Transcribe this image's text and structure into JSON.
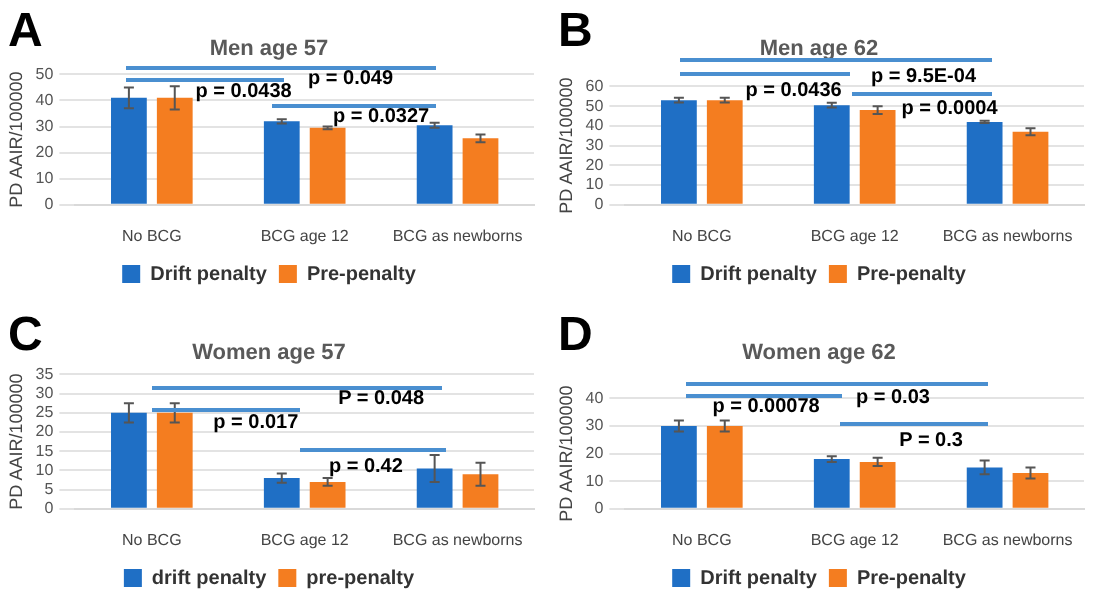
{
  "chart_data": [
    {
      "type": "bar",
      "title": "Men age 57",
      "ylabel": "PD AAIR/100000",
      "categories": [
        "No BCG",
        "BCG age 12",
        "BCG as newborns"
      ],
      "series": [
        {
          "name": "Drift penalty",
          "color": "#1f6fc5",
          "values": [
            41,
            32,
            30.5
          ],
          "errors": [
            4,
            0.8,
            1
          ]
        },
        {
          "name": "Pre-penalty",
          "color": "#f47d20",
          "values": [
            41,
            29.5,
            25.5
          ],
          "errors": [
            4.5,
            0.5,
            1.5
          ]
        }
      ],
      "ylim": [
        0,
        50
      ],
      "yticks": [
        0,
        10,
        20,
        30,
        40,
        50
      ],
      "grid": "y",
      "legend": "bottom",
      "annotations": [
        "A",
        "p = 0.0438",
        "p = 0.049",
        "p = 0.0327"
      ]
    },
    {
      "type": "bar",
      "title": "Men age 62",
      "ylabel": "PD AAIR/100000",
      "categories": [
        "No BCG",
        "BCG age 12",
        "BCG as newborns"
      ],
      "series": [
        {
          "name": "Drift penalty",
          "color": "#1f6fc5",
          "values": [
            53,
            50.5,
            42
          ],
          "errors": [
            1.2,
            1.2,
            0.6
          ]
        },
        {
          "name": "Pre-penalty",
          "color": "#f47d20",
          "values": [
            53,
            48,
            37
          ],
          "errors": [
            1.2,
            2,
            1.8
          ]
        }
      ],
      "ylim": [
        0,
        60
      ],
      "yticks": [
        0,
        10,
        20,
        30,
        40,
        50,
        60
      ],
      "grid": "y",
      "legend": "bottom",
      "annotations": [
        "B",
        "p = 0.0436",
        "p = 9.5E-04",
        "p = 0.0004"
      ]
    },
    {
      "type": "bar",
      "title": "Women age 57",
      "ylabel": "PD AAIR/100000",
      "categories": [
        "No BCG",
        "BCG age 12",
        "BCG as newborns"
      ],
      "series": [
        {
          "name": "drift penalty",
          "color": "#1f6fc5",
          "values": [
            25,
            8,
            10.5
          ],
          "errors": [
            2.5,
            1.2,
            3.5
          ]
        },
        {
          "name": "pre-penalty",
          "color": "#f47d20",
          "values": [
            25,
            7,
            9
          ],
          "errors": [
            2.5,
            1,
            3
          ]
        }
      ],
      "ylim": [
        0,
        35
      ],
      "yticks": [
        0,
        5,
        10,
        15,
        20,
        25,
        30,
        35
      ],
      "grid": "y",
      "legend": "bottom",
      "annotations": [
        "C",
        "p = 0.017",
        "P = 0.048",
        "p = 0.42"
      ]
    },
    {
      "type": "bar",
      "title": "Women age 62",
      "ylabel": "PD AAIR/100000",
      "categories": [
        "No BCG",
        "BCG age 12",
        "BCG as newborns"
      ],
      "series": [
        {
          "name": "Drift penalty",
          "color": "#1f6fc5",
          "values": [
            30,
            18,
            15
          ],
          "errors": [
            2,
            1,
            2.5
          ]
        },
        {
          "name": "Pre-penalty",
          "color": "#f47d20",
          "values": [
            30,
            17,
            13
          ],
          "errors": [
            2,
            1.5,
            2
          ]
        }
      ],
      "ylim": [
        0,
        40
      ],
      "yticks": [
        0,
        10,
        20,
        30,
        40
      ],
      "grid": "y",
      "legend": "bottom",
      "annotations": [
        "D",
        "p = 0.00078",
        "p = 0.03",
        "P = 0.3"
      ]
    }
  ]
}
